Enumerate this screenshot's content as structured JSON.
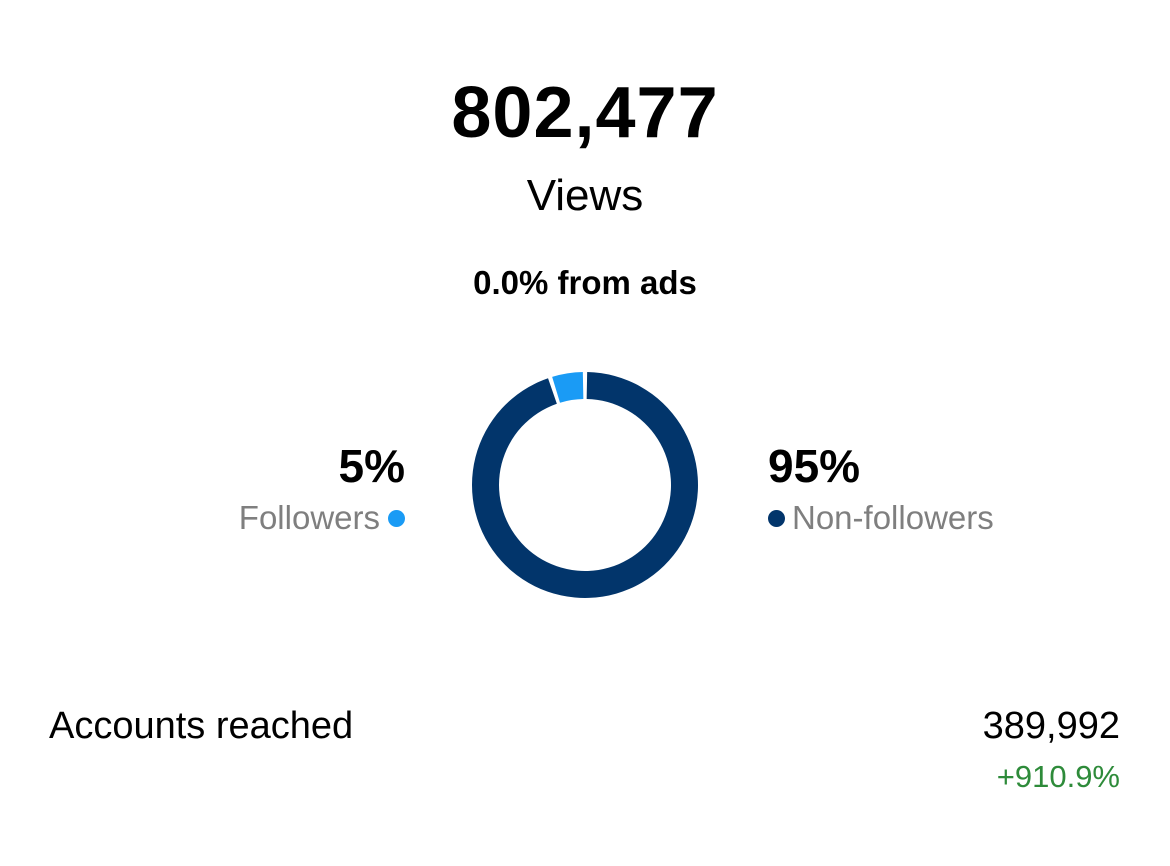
{
  "views": {
    "total": "802,477",
    "label": "Views",
    "ads_share": "0.0% from ads"
  },
  "audience": {
    "followers": {
      "percent_label": "5%",
      "label": "Followers",
      "share": 0.05,
      "color": "#1a9bf5"
    },
    "non_followers": {
      "percent_label": "95%",
      "label": "Non-followers",
      "share": 0.95,
      "color": "#02356b"
    }
  },
  "metric": {
    "label": "Accounts reached",
    "value": "389,992",
    "change": "+910.9%",
    "change_color": "#2e8b3a"
  }
}
